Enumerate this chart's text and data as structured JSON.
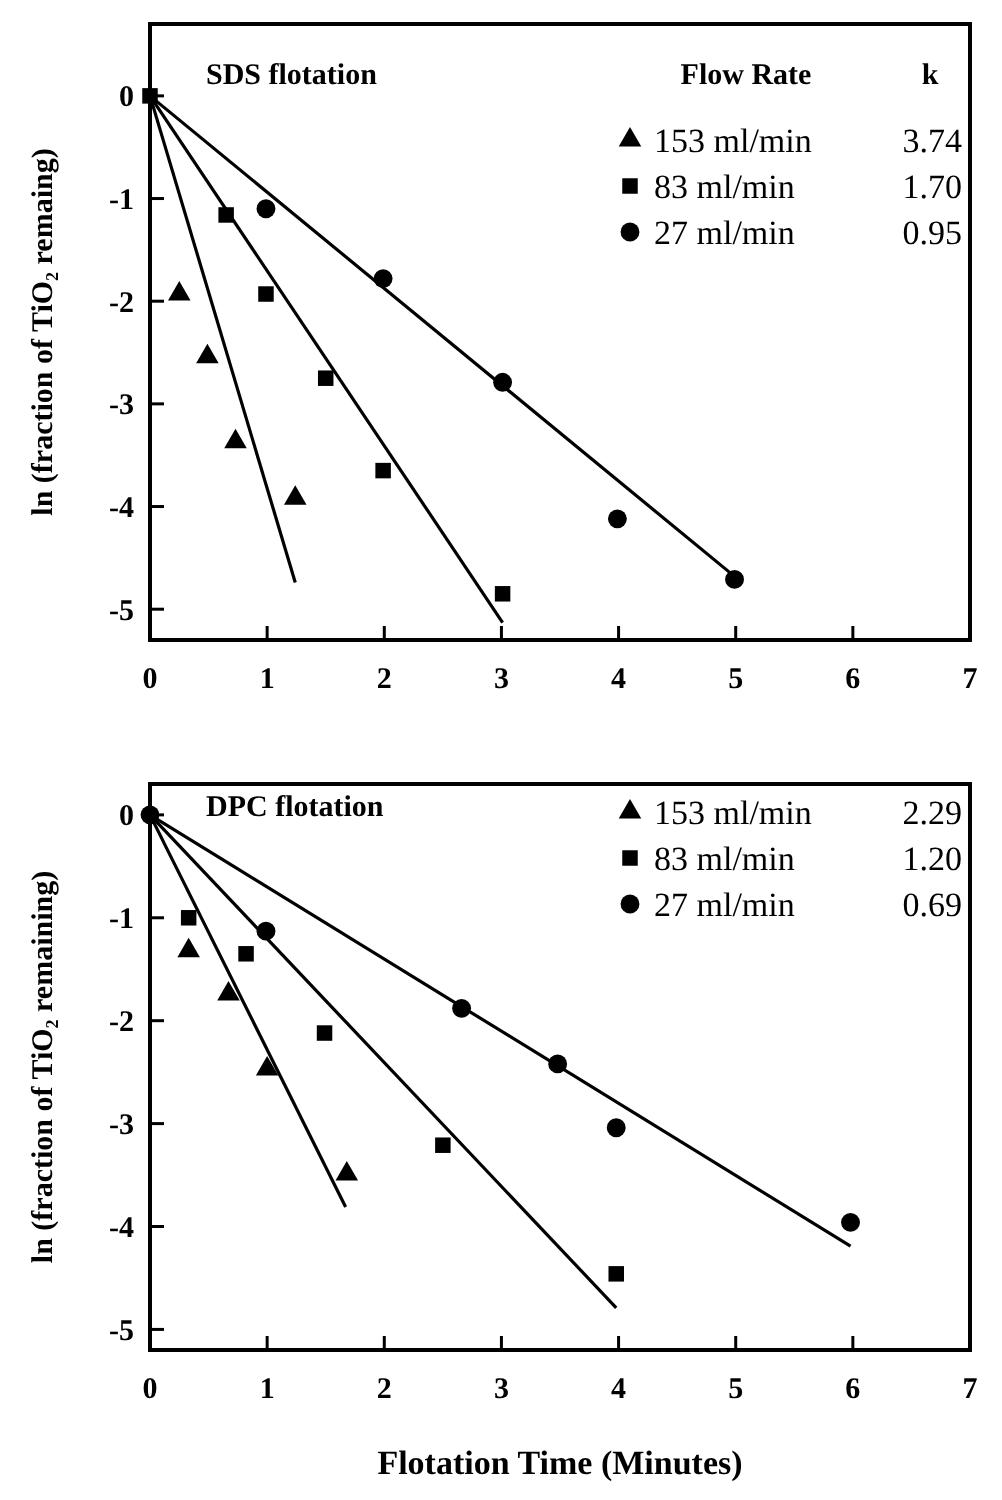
{
  "chart_data": [
    {
      "type": "scatter",
      "title": "SDS flotation",
      "ylabel": "ln (fraction of TiO₂ remaing)",
      "legend_title": "Flow Rate",
      "legend": "top right",
      "grid": false,
      "xlim": [
        0,
        7
      ],
      "xticks": [
        0,
        1,
        2,
        3,
        4,
        5,
        6,
        7
      ],
      "ylim": [
        -5.3,
        0.7
      ],
      "yticks": [
        0,
        -1,
        -2,
        -3,
        -4,
        -5
      ],
      "annotations": [
        "k",
        "3.74",
        "1.70",
        "0.95"
      ],
      "series": [
        {
          "name": "153 ml/min",
          "marker": "triangle",
          "color": "#000000",
          "x": [
            0.25,
            0.49,
            0.73,
            1.24
          ],
          "values": [
            -1.93,
            -2.54,
            -3.37,
            -3.92
          ]
        },
        {
          "name": "83 ml/min",
          "marker": "square",
          "color": "#000000",
          "x": [
            0,
            0.65,
            0.99,
            1.5,
            1.99,
            3.01
          ],
          "values": [
            0,
            -1.16,
            -1.93,
            -2.75,
            -3.65,
            -4.85
          ]
        },
        {
          "name": "27 ml/min",
          "marker": "circle",
          "color": "#000000",
          "x": [
            0.99,
            1.99,
            3.01,
            3.99,
            4.99
          ],
          "values": [
            -1.1,
            -1.78,
            -2.79,
            -4.12,
            -4.71
          ]
        },
        {
          "type": "line",
          "color": "#000000",
          "x": [
            0,
            1.24
          ],
          "values": [
            0,
            -4.74
          ]
        },
        {
          "type": "line",
          "color": "#000000",
          "x": [
            0,
            3.01
          ],
          "values": [
            0,
            -5.13
          ]
        },
        {
          "type": "line",
          "color": "#000000",
          "x": [
            0,
            5
          ],
          "values": [
            0,
            -4.69
          ]
        }
      ]
    },
    {
      "type": "scatter",
      "title": "DPC flotation",
      "xlabel": "Flotation Time (Minutes)",
      "ylabel": "ln (fraction of TiO₂ remaining)",
      "legend": "top right",
      "grid": false,
      "xlim": [
        0,
        7
      ],
      "xticks": [
        0,
        1,
        2,
        3,
        4,
        5,
        6,
        7
      ],
      "ylim": [
        -5.2,
        0.3
      ],
      "yticks": [
        0,
        -1,
        -2,
        -3,
        -4,
        -5
      ],
      "annotations": [
        "2.29",
        "1.20",
        "0.69"
      ],
      "series": [
        {
          "name": "153 ml/min",
          "marker": "triangle",
          "color": "#000000",
          "x": [
            0.33,
            0.67,
            1.0,
            1.68
          ],
          "values": [
            -1.32,
            -1.74,
            -2.47,
            -3.49
          ]
        },
        {
          "name": "83 ml/min",
          "marker": "square",
          "color": "#000000",
          "x": [
            0.33,
            0.82,
            1.49,
            2.5,
            3.98
          ],
          "values": [
            -1.0,
            -1.35,
            -2.12,
            -3.21,
            -4.46
          ]
        },
        {
          "name": "27 ml/min",
          "marker": "circle",
          "color": "#000000",
          "x": [
            0,
            0.99,
            2.66,
            3.48,
            3.98,
            5.98
          ],
          "values": [
            0,
            -1.13,
            -1.88,
            -2.42,
            -3.04,
            -3.96
          ]
        },
        {
          "type": "line",
          "color": "#000000",
          "x": [
            0,
            1.67
          ],
          "values": [
            0,
            -3.81
          ]
        },
        {
          "type": "line",
          "color": "#000000",
          "x": [
            0,
            3.98
          ],
          "values": [
            0,
            -4.79
          ]
        },
        {
          "type": "line",
          "color": "#000000",
          "x": [
            0,
            5.98
          ],
          "values": [
            0,
            -4.19
          ]
        }
      ]
    }
  ]
}
